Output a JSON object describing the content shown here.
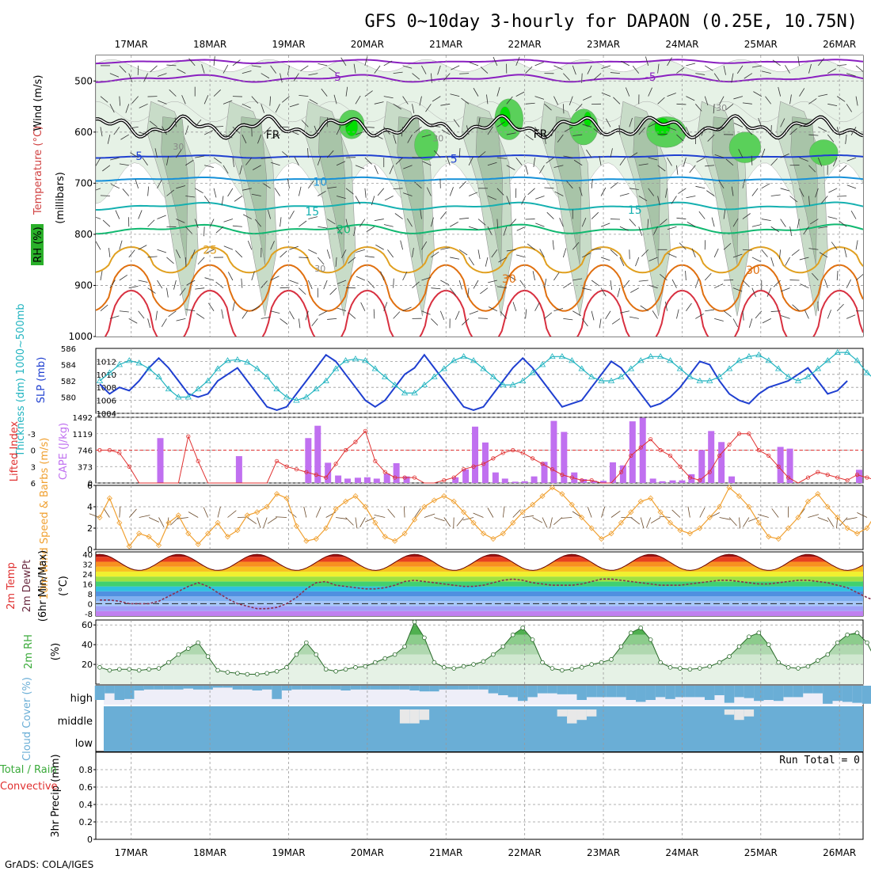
{
  "title": "GFS 0~10day 3-hourly for DAPAON (0.25E, 10.75N)",
  "credit": "GrADS: COLA/IGES",
  "dates": [
    "17MAR",
    "18MAR",
    "19MAR",
    "20MAR",
    "21MAR",
    "22MAR",
    "23MAR",
    "24MAR",
    "25MAR",
    "26MAR"
  ],
  "colors": {
    "rh_light": "#e6f2e6",
    "rh_mid": "#c8dcc8",
    "rh_dark": "#a8c4a8",
    "rh_green": "#5ad05a",
    "rh_bright": "#00e000",
    "slp": "#1f3fd0",
    "thickness": "#22b4c0",
    "cape_bar": "#c070f0",
    "li": "#e03030",
    "wind10": "#f0a030",
    "rh2m": "#3aaa3a",
    "cloud": "#6aaed6",
    "cloud_bg": "#eeeef8"
  },
  "chart_data": [
    {
      "type": "heatmap",
      "panel": "upper-air",
      "ylabel_parts": {
        "rh": "RH (%)",
        "temperature": "Temperature (°C)",
        "wind": "Wind (m/s)",
        "units": "(millibars)"
      },
      "y_ticks": [
        500,
        600,
        700,
        800,
        900,
        1000
      ],
      "ylim": [
        450,
        1000
      ],
      "isotherm_labels": [
        {
          "text": "-5",
          "date": 19.6,
          "p": 492,
          "color": "#8a20c0"
        },
        {
          "text": "-5",
          "date": 23.6,
          "p": 492,
          "color": "#8a20c0"
        },
        {
          "text": "5",
          "date": 17.1,
          "p": 647,
          "color": "#1f3fd0"
        },
        {
          "text": "5",
          "date": 21.1,
          "p": 652,
          "color": "#1f3fd0"
        },
        {
          "text": "10",
          "date": 19.4,
          "p": 697,
          "color": "#1590d8"
        },
        {
          "text": "15",
          "date": 19.3,
          "p": 755,
          "color": "#15b0b0"
        },
        {
          "text": "15",
          "date": 23.4,
          "p": 752,
          "color": "#15b0b0"
        },
        {
          "text": "20",
          "date": 19.7,
          "p": 790,
          "color": "#10b870"
        },
        {
          "text": "25",
          "date": 18.0,
          "p": 830,
          "color": "#e0a020"
        },
        {
          "text": "30",
          "date": 21.8,
          "p": 887,
          "color": "#e07010"
        },
        {
          "text": "30",
          "date": 24.9,
          "p": 870,
          "color": "#e07010"
        },
        {
          "text": "FR",
          "date": 18.8,
          "p": 605,
          "color": "#000000"
        },
        {
          "text": "FR",
          "date": 22.2,
          "p": 603,
          "color": "#000000"
        }
      ],
      "rh_labels": [
        {
          "text": "30",
          "date": 17.6,
          "p": 628
        },
        {
          "text": "30",
          "date": 20.9,
          "p": 612
        },
        {
          "text": "30",
          "date": 24.5,
          "p": 552
        },
        {
          "text": "30",
          "date": 19.4,
          "p": 867
        }
      ]
    },
    {
      "type": "line",
      "panel": "slp-thickness",
      "left_label": "Thickness (dm) 1000~500mb",
      "right_label": "SLP (mb)",
      "left_ticks": [
        580,
        582,
        584,
        586
      ],
      "right_ticks": [
        1004,
        1006,
        1008,
        1010,
        1012
      ],
      "left_lim": [
        578,
        586
      ],
      "right_lim": [
        1004,
        1014
      ],
      "series": [
        {
          "name": "SLP (mb)",
          "axis": "right",
          "color": "#1f3fd0",
          "values": [
            1008.5,
            1007,
            1008,
            1007.5,
            1009,
            1011,
            1012.5,
            1011,
            1009,
            1007,
            1006.5,
            1007,
            1009,
            1010,
            1011,
            1009,
            1007,
            1005,
            1004.5,
            1005,
            1007,
            1009,
            1011,
            1013,
            1012,
            1010,
            1008,
            1006,
            1005,
            1006,
            1008,
            1010,
            1011,
            1013,
            1011,
            1009,
            1007,
            1005,
            1004.5,
            1005,
            1007,
            1009,
            1011,
            1012.5,
            1011,
            1009,
            1007,
            1005,
            1005.5,
            1006,
            1008,
            1010,
            1012,
            1011,
            1009,
            1007,
            1005,
            1005.5,
            1006.5,
            1008,
            1010,
            1012,
            1011.5,
            1009,
            1007,
            1006,
            1005.5,
            1007,
            1008,
            1008.5,
            1009,
            1010,
            1011,
            1009,
            1007,
            1007.5,
            1009
          ]
        },
        {
          "name": "Thickness",
          "axis": "left",
          "color": "#22b4c0",
          "values": [
            582,
            583,
            584,
            584.5,
            584.2,
            583.5,
            582.5,
            581,
            580,
            580,
            581,
            582,
            583.5,
            584.5,
            584.6,
            584.3,
            583.5,
            582.5,
            581,
            580,
            579.6,
            580,
            581,
            582,
            583.5,
            584.5,
            584.7,
            584.5,
            583.5,
            582.5,
            581.5,
            580.5,
            580.5,
            581.5,
            582.5,
            583.5,
            584.5,
            585,
            584.5,
            583.5,
            582.5,
            581.5,
            581.5,
            582,
            583,
            584,
            585,
            585,
            584.5,
            583.5,
            582.5,
            582,
            582,
            582.5,
            583.5,
            584.5,
            585,
            585,
            584.5,
            583.5,
            582.5,
            582,
            582,
            582.5,
            583.5,
            584.5,
            585,
            585.2,
            584.5,
            583.5,
            582.5,
            582,
            582.5,
            583.5,
            584.5,
            585.5,
            585.5,
            584.5,
            583,
            582,
            581.5
          ]
        }
      ]
    },
    {
      "type": "bar",
      "panel": "cape-li",
      "left_label": "Lifted Index",
      "right_label": "CAPE (J/kg)",
      "left_ticks": [
        6,
        3,
        0,
        -3
      ],
      "right_ticks": [
        0,
        373,
        746,
        1119,
        1492
      ],
      "left_lim": [
        6,
        -6
      ],
      "right_lim": [
        0,
        1492
      ],
      "cape": [
        0,
        0,
        0,
        0,
        0,
        0,
        0,
        0,
        0,
        0,
        0,
        0,
        0,
        0,
        0,
        0,
        0,
        0,
        0,
        0,
        0,
        0,
        0,
        0,
        0,
        0,
        0,
        0,
        0,
        0,
        0,
        0,
        0,
        0,
        0,
        0,
        0,
        0,
        0,
        0,
        0,
        0,
        0,
        0,
        0,
        0,
        0,
        0,
        0,
        0,
        0,
        0,
        0,
        0,
        0,
        0,
        0,
        0,
        0,
        0,
        0,
        0,
        0,
        0,
        0,
        0,
        0,
        0,
        0,
        0,
        0,
        0,
        0,
        0,
        0,
        0,
        0,
        0,
        0,
        0,
        0,
        0
      ],
      "cape_bars": [
        {
          "date": 17.37,
          "value": 1020
        },
        {
          "date": 18.37,
          "value": 610
        },
        {
          "date": 19.25,
          "value": 1020
        },
        {
          "date": 19.37,
          "value": 1300
        },
        {
          "date": 19.5,
          "value": 460
        },
        {
          "date": 19.63,
          "value": 170
        },
        {
          "date": 19.75,
          "value": 100
        },
        {
          "date": 19.88,
          "value": 120
        },
        {
          "date": 20.0,
          "value": 130
        },
        {
          "date": 20.12,
          "value": 100
        },
        {
          "date": 20.25,
          "value": 210
        },
        {
          "date": 20.37,
          "value": 450
        },
        {
          "date": 20.5,
          "value": 150
        },
        {
          "date": 21.12,
          "value": 130
        },
        {
          "date": 21.25,
          "value": 310
        },
        {
          "date": 21.37,
          "value": 1280
        },
        {
          "date": 21.5,
          "value": 920
        },
        {
          "date": 21.63,
          "value": 240
        },
        {
          "date": 21.75,
          "value": 100
        },
        {
          "date": 21.88,
          "value": 30
        },
        {
          "date": 22.0,
          "value": 40
        },
        {
          "date": 22.12,
          "value": 150
        },
        {
          "date": 22.25,
          "value": 480
        },
        {
          "date": 22.37,
          "value": 1410
        },
        {
          "date": 22.5,
          "value": 1160
        },
        {
          "date": 22.63,
          "value": 240
        },
        {
          "date": 22.75,
          "value": 90
        },
        {
          "date": 22.88,
          "value": 50
        },
        {
          "date": 23.0,
          "value": 50
        },
        {
          "date": 23.12,
          "value": 470
        },
        {
          "date": 23.25,
          "value": 400
        },
        {
          "date": 23.37,
          "value": 1400
        },
        {
          "date": 23.5,
          "value": 1480
        },
        {
          "date": 23.63,
          "value": 100
        },
        {
          "date": 23.75,
          "value": 40
        },
        {
          "date": 23.88,
          "value": 60
        },
        {
          "date": 24.0,
          "value": 60
        },
        {
          "date": 24.12,
          "value": 200
        },
        {
          "date": 24.25,
          "value": 750
        },
        {
          "date": 24.37,
          "value": 1180
        },
        {
          "date": 24.5,
          "value": 930
        },
        {
          "date": 24.63,
          "value": 150
        },
        {
          "date": 25.25,
          "value": 820
        },
        {
          "date": 25.37,
          "value": 780
        },
        {
          "date": 26.25,
          "value": 300
        }
      ],
      "li_values": [
        0,
        0,
        0.5,
        3,
        6,
        6,
        6,
        6,
        6,
        -2.5,
        2,
        6,
        6,
        6,
        6,
        6,
        6,
        6,
        2,
        3,
        3.5,
        4,
        4.5,
        5,
        2.5,
        0,
        -1.5,
        -3.5,
        2,
        4,
        5,
        5,
        5,
        6,
        6,
        5.5,
        5,
        3.5,
        3,
        2.5,
        1.5,
        0.5,
        0,
        0.5,
        1.5,
        2.5,
        3.5,
        4.5,
        5,
        5.5,
        5.5,
        6,
        6,
        4,
        1,
        -0.5,
        -2,
        0,
        1,
        3,
        5,
        5.5,
        4,
        1,
        -1,
        -3,
        -3,
        0,
        1,
        3,
        5,
        6,
        5,
        4,
        4.5,
        5,
        5.5,
        4.5,
        5,
        5.5,
        4
      ]
    },
    {
      "type": "line",
      "panel": "wind10m",
      "ylabel": "10m Wind Speed & Barbs (m/s)",
      "y_ticks": [
        0,
        2,
        4,
        6
      ],
      "ylim": [
        0,
        6
      ],
      "values": [
        3,
        4.8,
        2.5,
        0.3,
        1.5,
        1.2,
        0.4,
        2.5,
        3.2,
        1.5,
        0.5,
        1.5,
        2.5,
        1.2,
        1.8,
        3.2,
        3.5,
        4,
        5.2,
        4.8,
        2.2,
        0.8,
        1,
        2,
        3.8,
        4.5,
        5,
        4,
        2.5,
        1.2,
        0.8,
        1.5,
        2.8,
        4,
        4.6,
        5,
        4.5,
        3.5,
        2.5,
        1.5,
        1,
        1.5,
        2.5,
        3.5,
        4.2,
        5,
        5.8,
        5.2,
        4.2,
        3,
        2,
        1,
        1.5,
        2.5,
        3.5,
        4.5,
        4.8,
        3.5,
        2.5,
        1.8,
        1.5,
        2,
        3,
        4,
        5.8,
        5,
        4,
        2.5,
        1.2,
        1,
        2,
        3,
        4.5,
        5.2,
        4,
        3,
        2,
        1.5,
        2,
        3.5,
        4
      ]
    },
    {
      "type": "area",
      "panel": "temp2m",
      "ylabel": "2m Temp 2m DewPt (6hr Min/Max) (°C)",
      "y_ticks": [
        -8,
        0,
        8,
        16,
        24,
        32,
        40
      ],
      "ylim": [
        -10,
        42
      ],
      "temp_max_days": [
        40,
        40,
        40,
        40,
        40,
        40,
        40,
        40,
        40,
        40
      ],
      "temp_min_days": [
        27,
        27,
        27,
        27,
        27,
        27,
        27,
        27,
        27,
        27
      ],
      "dewpoint": [
        3,
        3,
        2,
        0,
        0,
        0,
        2,
        6,
        10,
        14,
        17,
        14,
        9,
        4,
        0,
        -2,
        -4,
        -4,
        -3,
        0,
        5,
        12,
        17,
        18,
        15,
        14,
        13,
        12,
        12,
        13,
        15,
        18,
        19,
        18,
        17,
        16,
        15,
        14,
        14,
        15,
        17,
        19,
        20,
        19,
        17,
        16,
        15,
        15,
        15,
        16,
        18,
        20,
        20,
        19,
        18,
        17,
        16,
        15,
        15,
        15,
        16,
        17,
        18,
        19,
        19,
        18,
        17,
        16,
        16,
        17,
        18,
        19,
        19,
        18,
        17,
        15,
        13,
        9,
        5,
        2,
        0
      ]
    },
    {
      "type": "area",
      "panel": "rh2m",
      "ylabel": "2m RH (%)",
      "y_ticks": [
        20,
        40,
        60
      ],
      "ylim": [
        0,
        65
      ],
      "values": [
        17,
        14,
        15,
        15,
        14,
        15,
        16,
        22,
        30,
        36,
        42,
        28,
        14,
        12,
        11,
        10,
        10,
        11,
        13,
        17,
        30,
        42,
        30,
        15,
        13,
        15,
        17,
        18,
        22,
        26,
        30,
        38,
        63,
        47,
        22,
        17,
        16,
        18,
        20,
        23,
        30,
        38,
        50,
        57,
        45,
        22,
        16,
        14,
        15,
        17,
        20,
        22,
        25,
        38,
        52,
        57,
        45,
        22,
        17,
        16,
        15,
        16,
        18,
        22,
        28,
        38,
        48,
        52,
        40,
        22,
        17,
        16,
        18,
        24,
        30,
        42,
        50,
        52,
        42,
        22,
        17
      ]
    },
    {
      "type": "bar",
      "panel": "cloud",
      "ylabel": "Cloud Cover (%)",
      "levels": [
        "high",
        "middle",
        "low"
      ],
      "high": [
        75,
        40,
        75,
        70,
        25,
        20,
        20,
        20,
        20,
        15,
        20,
        20,
        10,
        10,
        20,
        20,
        25,
        20,
        70,
        25,
        20,
        20,
        20,
        20,
        20,
        25,
        20,
        20,
        20,
        20,
        20,
        20,
        25,
        30,
        30,
        20,
        20,
        20,
        20,
        20,
        40,
        50,
        60,
        80,
        60,
        40,
        40,
        45,
        45,
        75,
        60,
        60,
        60,
        60,
        75,
        85,
        75,
        60,
        70,
        60,
        60,
        60,
        75,
        50,
        90,
        60,
        65,
        80,
        75,
        80,
        60,
        60,
        40,
        40,
        95,
        80,
        85,
        90,
        95,
        90,
        80
      ],
      "middle": [
        100,
        100,
        100,
        100,
        100,
        100,
        100,
        100,
        100,
        100,
        100,
        100,
        100,
        100,
        100,
        100,
        100,
        100,
        100,
        100,
        100,
        100,
        100,
        100,
        100,
        100,
        100,
        100,
        100,
        100,
        100,
        20,
        20,
        40,
        100,
        100,
        100,
        100,
        100,
        100,
        100,
        100,
        100,
        100,
        100,
        100,
        100,
        60,
        20,
        40,
        60,
        100,
        100,
        100,
        100,
        100,
        100,
        100,
        100,
        100,
        100,
        100,
        100,
        100,
        70,
        40,
        60,
        100,
        100,
        100,
        100,
        100,
        100,
        100,
        100,
        100,
        100,
        100,
        100,
        100,
        100
      ]
    },
    {
      "type": "line",
      "panel": "precip",
      "ylabel": "3hr Precip (mm)",
      "left_label_parts": [
        "Total / Rain",
        "Convective"
      ],
      "y_ticks": [
        0,
        0.2,
        0.4,
        0.6,
        0.8
      ],
      "ylim": [
        0,
        1
      ],
      "run_total": "Run Total = 0",
      "values": []
    }
  ]
}
